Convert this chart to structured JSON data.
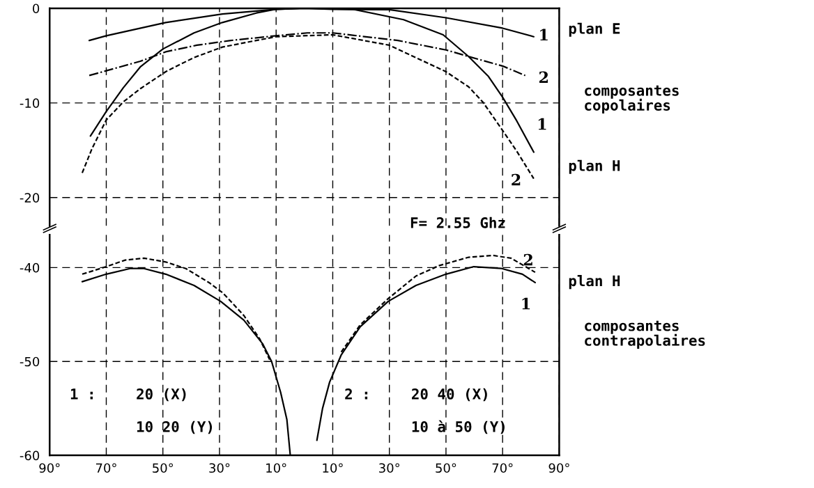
{
  "chart_data": [
    {
      "type": "line",
      "xlim": [
        -90,
        90
      ],
      "ylim": [
        -23,
        0
      ],
      "yticks": [
        0,
        -10,
        -20
      ],
      "tick_labels": "y",
      "grid": true,
      "xticks": [
        {
          "value": -90,
          "label": null
        },
        {
          "value": -70,
          "label": null
        },
        {
          "value": -50,
          "label": null
        },
        {
          "value": -30,
          "label": null
        },
        {
          "value": -10,
          "label": null
        },
        {
          "value": 10,
          "label": null
        },
        {
          "value": 30,
          "label": null
        },
        {
          "value": 50,
          "label": null
        },
        {
          "value": 70,
          "label": null
        },
        {
          "value": 90,
          "label": null
        }
      ],
      "series": [
        {
          "color": "#000000",
          "line_style": "solid",
          "x": [
            -76,
            -70,
            -49,
            -29,
            -10,
            0,
            10,
            30,
            50,
            70,
            81
          ],
          "values": [
            -3.4,
            -2.9,
            -1.5,
            -0.6,
            -0.1,
            0,
            -0.1,
            -0.15,
            -1.0,
            -2.1,
            -3.0
          ]
        },
        {
          "color": "#000000",
          "line_style": "dashdot",
          "x": [
            -76,
            -70,
            -58,
            -49,
            -38,
            -26,
            -10,
            1,
            10,
            33,
            50,
            58,
            70,
            78
          ],
          "values": [
            -7.1,
            -6.6,
            -5.6,
            -4.6,
            -3.9,
            -3.4,
            -2.9,
            -2.6,
            -2.6,
            -3.4,
            -4.4,
            -5.1,
            -6.1,
            -7.1
          ]
        },
        {
          "color": "#000000",
          "line_style": "solid",
          "x": [
            -75.6,
            -70,
            -64,
            -58,
            -50,
            -39,
            -29,
            -17,
            -10,
            0,
            17,
            35,
            49,
            58,
            65,
            70,
            75,
            81
          ],
          "values": [
            -13.5,
            -10.9,
            -8.4,
            -6.2,
            -4.3,
            -2.6,
            -1.5,
            -0.5,
            -0.1,
            0,
            -0.1,
            -1.2,
            -2.8,
            -5.1,
            -7.2,
            -9.4,
            -11.9,
            -15.2
          ]
        },
        {
          "color": "#000000",
          "line_style": "dashed",
          "x": [
            -78.5,
            -75,
            -70,
            -64,
            -58,
            -49,
            -39,
            -29,
            -17,
            -10,
            10,
            30,
            50,
            58,
            63,
            70,
            75,
            81
          ],
          "values": [
            -17.4,
            -14.8,
            -11.8,
            -9.9,
            -8.5,
            -6.7,
            -5.2,
            -4.1,
            -3.4,
            -3.0,
            -2.8,
            -3.9,
            -6.7,
            -8.3,
            -9.9,
            -12.9,
            -15.1,
            -18.0
          ]
        }
      ],
      "annotations": [
        "plan E",
        "composantes\ncopolaires",
        "plan H",
        "F= 2.55 Ghz",
        "1",
        "2",
        "1",
        "2"
      ]
    },
    {
      "type": "line",
      "xlim": [
        -90,
        90
      ],
      "ylim": [
        -60,
        -36.5
      ],
      "yticks": [
        -40,
        -50,
        -60
      ],
      "grid": true,
      "xticks": [
        {
          "value": -90,
          "label": "90°"
        },
        {
          "value": -70,
          "label": "70°"
        },
        {
          "value": -50,
          "label": "50°"
        },
        {
          "value": -30,
          "label": "30°"
        },
        {
          "value": -10,
          "label": "10°"
        },
        {
          "value": 10,
          "label": "10°"
        },
        {
          "value": 30,
          "label": "30°"
        },
        {
          "value": 50,
          "label": "50°"
        },
        {
          "value": 70,
          "label": "70°"
        },
        {
          "value": 90,
          "label": "90°"
        }
      ],
      "series": [
        {
          "color": "#000000",
          "line_style": "solid",
          "x": [
            -78.5,
            -70,
            -61.6,
            -56.7,
            -49,
            -39,
            -29.6,
            -21.4,
            -14.8,
            -11.6,
            -8.4,
            -6.2,
            -5,
            0,
            4.4,
            6.4,
            8.9,
            13,
            19.7,
            29.6,
            39.4,
            50,
            59.8,
            69.7,
            77,
            81.5
          ],
          "values": [
            -41.5,
            -40.7,
            -40.1,
            -40.1,
            -40.7,
            -41.9,
            -43.6,
            -45.6,
            -48.1,
            -50,
            -53.3,
            -56.2,
            -60,
            null,
            -58.4,
            -55,
            -52.2,
            -49.3,
            -46.3,
            -43.6,
            -41.9,
            -40.7,
            -39.9,
            -40.1,
            -40.7,
            -41.6
          ]
        },
        {
          "color": "#000000",
          "line_style": "dashed",
          "x": [
            -78.5,
            -70,
            -63.3,
            -56.7,
            -49,
            -41.9,
            -33.7,
            -28.8,
            -21.4,
            -15.8,
            -12.3,
            0,
            13,
            19.7,
            29.6,
            39.4,
            47.5,
            58,
            66.5,
            73,
            81.5
          ],
          "values": [
            -40.7,
            -39.9,
            -39.2,
            -39.0,
            -39.4,
            -40.1,
            -41.6,
            -42.7,
            -45.1,
            -47.6,
            -49.8,
            null,
            -49,
            -46.1,
            -43.3,
            -40.9,
            -39.8,
            -38.9,
            -38.7,
            -39.0,
            -40.5
          ]
        }
      ],
      "annotations": [
        "plan H",
        "composantes\ncontrapolaires",
        "1 :",
        "20 (X)",
        "10 20 (Y)",
        "2 :",
        "20 40 (X)",
        "10 à 50 (Y)",
        "2",
        "1"
      ]
    }
  ]
}
